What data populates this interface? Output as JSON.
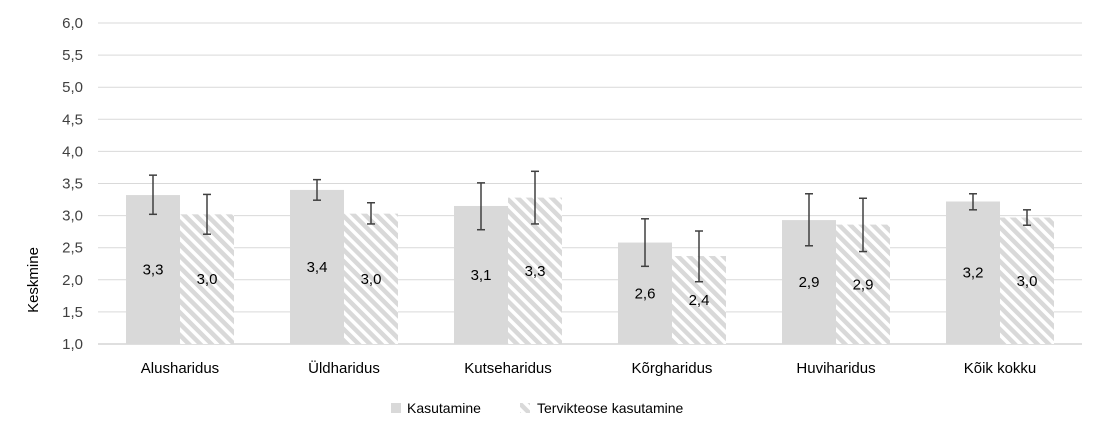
{
  "chart_data": {
    "type": "bar",
    "ylabel": "Keskmine",
    "ylim": [
      1.0,
      6.0
    ],
    "ytick_step": 0.5,
    "grid": true,
    "legend_position": "bottom",
    "categories": [
      "Alusharidus",
      "Üldharidus",
      "Kutseharidus",
      "Kõrgharidus",
      "Huviharidus",
      "Kõik kokku"
    ],
    "series": [
      {
        "name": "Kasutamine",
        "style": "solid",
        "color": "#d9d9d9",
        "values": [
          3.32,
          3.4,
          3.15,
          2.58,
          2.93,
          3.22
        ],
        "labels": [
          "3,3",
          "3,4",
          "3,1",
          "2,6",
          "2,9",
          "3,2"
        ],
        "error_low": [
          3.02,
          3.24,
          2.78,
          2.21,
          2.53,
          3.09
        ],
        "error_high": [
          3.63,
          3.56,
          3.51,
          2.95,
          3.34,
          3.34
        ]
      },
      {
        "name": "Tervikteose kasutamine",
        "style": "hatched",
        "color": "#d9d9d9",
        "values": [
          3.02,
          3.03,
          3.28,
          2.37,
          2.86,
          2.97
        ],
        "labels": [
          "3,0",
          "3,0",
          "3,3",
          "2,4",
          "2,9",
          "3,0"
        ],
        "error_low": [
          2.71,
          2.87,
          2.87,
          1.97,
          2.44,
          2.85
        ],
        "error_high": [
          3.33,
          3.2,
          3.69,
          2.76,
          3.27,
          3.09
        ]
      }
    ]
  }
}
